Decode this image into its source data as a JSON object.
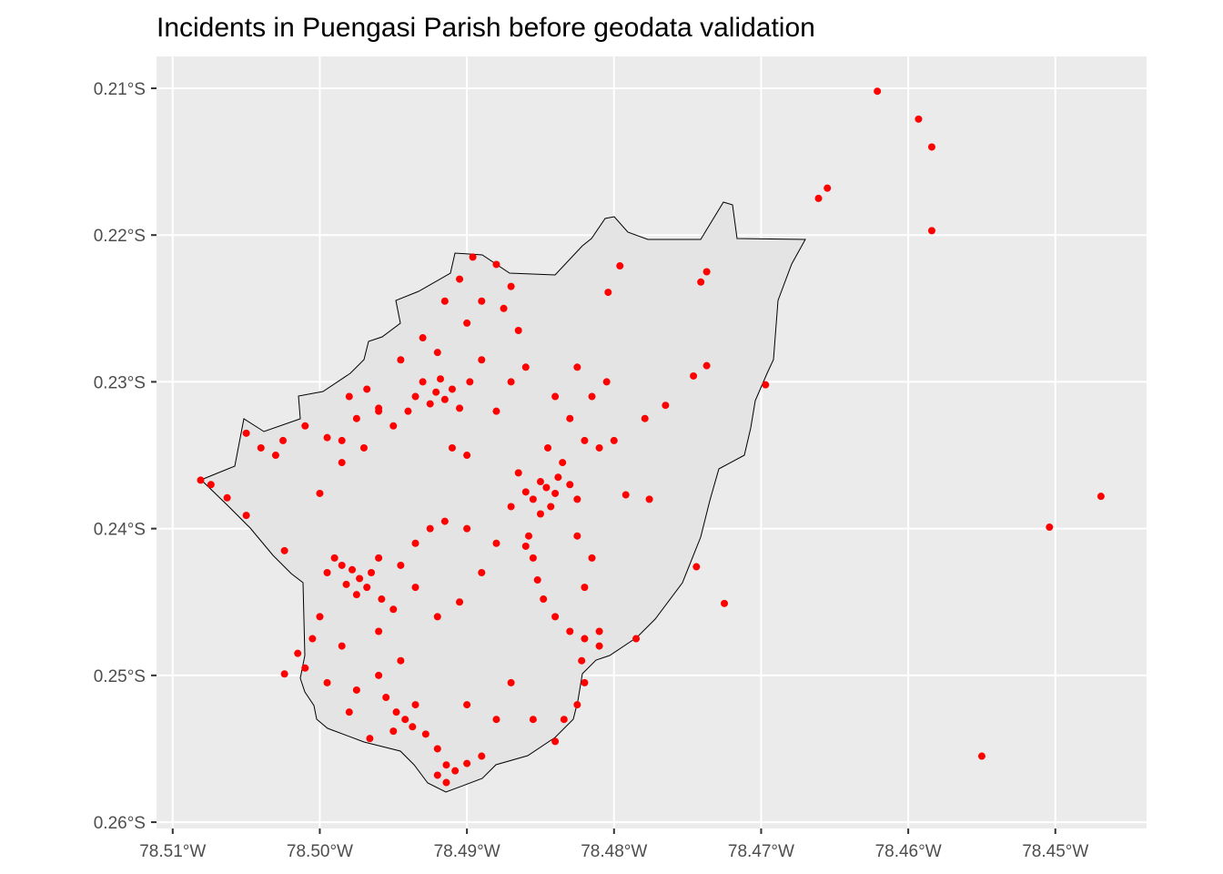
{
  "chart_data": {
    "type": "scatter",
    "title": "Incidents in Puengasi Parish before geodata validation",
    "color": "#ff0000",
    "grid": true,
    "xlim": [
      -78.5111,
      -78.4438
    ],
    "ylim": [
      -0.26043,
      -0.20783
    ],
    "xticks": [
      {
        "value": -78.51,
        "label": "78.51°W"
      },
      {
        "value": -78.5,
        "label": "78.50°W"
      },
      {
        "value": -78.49,
        "label": "78.49°W"
      },
      {
        "value": -78.48,
        "label": "78.48°W"
      },
      {
        "value": -78.47,
        "label": "78.47°W"
      },
      {
        "value": -78.46,
        "label": "78.46°W"
      },
      {
        "value": -78.45,
        "label": "78.45°W"
      }
    ],
    "yticks": [
      {
        "value": -0.21,
        "label": "0.21°S"
      },
      {
        "value": -0.22,
        "label": "0.22°S"
      },
      {
        "value": -0.23,
        "label": "0.23°S"
      },
      {
        "value": -0.24,
        "label": "0.24°S"
      },
      {
        "value": -0.25,
        "label": "0.25°S"
      },
      {
        "value": -0.26,
        "label": "0.26°S"
      }
    ],
    "x": [
      -78.4621,
      -78.4593,
      -78.4584,
      -78.4584,
      -78.4655,
      -78.4661,
      -78.4469,
      -78.4504,
      -78.455,
      -78.4697,
      -78.4725,
      -78.4744,
      -78.4737,
      -78.4741,
      -78.4737,
      -78.4746,
      -78.4765,
      -78.4779,
      -78.4776,
      -78.4792,
      -78.4785,
      -78.4796,
      -78.4804,
      -78.5081,
      -78.5074,
      -78.5063,
      -78.505,
      -78.5024,
      -78.5,
      -78.5024,
      -78.4966,
      -78.4914,
      -78.4921,
      -78.493,
      -78.4915,
      -78.4925,
      -78.491,
      -78.4935,
      -78.4918,
      -78.4905,
      -78.494,
      -78.4898,
      -78.495,
      -78.496,
      -78.4975,
      -78.4985,
      -78.4968,
      -78.4945,
      -78.493,
      -78.491,
      -78.49,
      -78.488,
      -78.487,
      -78.4896,
      -78.4905,
      -78.489,
      -78.488,
      -78.4915,
      -78.49,
      -78.4875,
      -78.4865,
      -78.492,
      -78.489,
      -78.487,
      -78.486,
      -78.4846,
      -78.485,
      -78.484,
      -78.4855,
      -78.4838,
      -78.486,
      -78.4843,
      -78.483,
      -78.4865,
      -78.485,
      -78.4835,
      -78.4825,
      -78.487,
      -78.4845,
      -78.482,
      -78.481,
      -78.48,
      -78.483,
      -78.4815,
      -78.484,
      -78.4825,
      -78.4805,
      -78.4858,
      -78.4855,
      -78.4852,
      -78.4848,
      -78.486,
      -78.484,
      -78.483,
      -78.482,
      -78.481,
      -78.482,
      -78.4815,
      -78.4825,
      -78.4973,
      -78.4978,
      -78.4968,
      -78.4982,
      -78.4965,
      -78.4975,
      -78.4985,
      -78.496,
      -78.499,
      -78.4958,
      -78.4995,
      -78.4945,
      -78.4935,
      -78.4925,
      -78.4915,
      -78.4935,
      -78.495,
      -78.5,
      -78.5005,
      -78.4985,
      -78.496,
      -78.492,
      -78.4905,
      -78.489,
      -78.488,
      -78.49,
      -78.4942,
      -78.4948,
      -78.4937,
      -78.495,
      -78.4935,
      -78.4928,
      -78.4955,
      -78.492,
      -78.4914,
      -78.4908,
      -78.492,
      -78.49,
      -78.489,
      -78.496,
      -78.4945,
      -78.4975,
      -78.4995,
      -78.501,
      -78.5015,
      -78.498,
      -78.49,
      -78.488,
      -78.487,
      -78.4855,
      -78.4834,
      -78.4825,
      -78.482,
      -78.4822,
      -78.481,
      -78.484,
      -78.4995,
      -78.501,
      -78.5025,
      -78.504,
      -78.505,
      -78.4985,
      -78.503,
      -78.497,
      -78.496,
      -78.498
    ],
    "y": [
      -0.2102,
      -0.2121,
      -0.214,
      -0.2197,
      -0.2168,
      -0.2175,
      -0.2378,
      -0.2399,
      -0.2555,
      -0.2302,
      -0.2451,
      -0.2426,
      -0.2225,
      -0.2232,
      -0.2289,
      -0.2296,
      -0.2316,
      -0.2325,
      -0.238,
      -0.2377,
      -0.2475,
      -0.2221,
      -0.2239,
      -0.2367,
      -0.237,
      -0.2379,
      -0.2391,
      -0.2415,
      -0.2376,
      -0.2499,
      -0.2543,
      -0.2573,
      -0.2307,
      -0.23,
      -0.2312,
      -0.2315,
      -0.2305,
      -0.231,
      -0.2298,
      -0.2318,
      -0.232,
      -0.23,
      -0.233,
      -0.2318,
      -0.2325,
      -0.234,
      -0.2305,
      -0.2285,
      -0.227,
      -0.2345,
      -0.235,
      -0.232,
      -0.23,
      -0.2215,
      -0.223,
      -0.2245,
      -0.222,
      -0.2245,
      -0.226,
      -0.225,
      -0.2265,
      -0.228,
      -0.2285,
      -0.2235,
      -0.229,
      -0.2372,
      -0.2368,
      -0.2376,
      -0.238,
      -0.2365,
      -0.2375,
      -0.2385,
      -0.237,
      -0.2362,
      -0.239,
      -0.2355,
      -0.238,
      -0.2385,
      -0.2345,
      -0.234,
      -0.2345,
      -0.234,
      -0.2325,
      -0.231,
      -0.231,
      -0.229,
      -0.23,
      -0.2405,
      -0.242,
      -0.2435,
      -0.2448,
      -0.2412,
      -0.246,
      -0.247,
      -0.2475,
      -0.247,
      -0.244,
      -0.242,
      -0.2405,
      -0.2434,
      -0.2428,
      -0.244,
      -0.2438,
      -0.243,
      -0.2445,
      -0.2425,
      -0.242,
      -0.242,
      -0.2448,
      -0.243,
      -0.2425,
      -0.241,
      -0.24,
      -0.2395,
      -0.244,
      -0.2455,
      -0.246,
      -0.2475,
      -0.248,
      -0.247,
      -0.246,
      -0.245,
      -0.243,
      -0.241,
      -0.24,
      -0.253,
      -0.2525,
      -0.2535,
      -0.2538,
      -0.252,
      -0.254,
      -0.2515,
      -0.255,
      -0.2561,
      -0.2565,
      -0.2568,
      -0.256,
      -0.2555,
      -0.25,
      -0.249,
      -0.251,
      -0.2505,
      -0.2495,
      -0.2485,
      -0.2525,
      -0.252,
      -0.253,
      -0.2505,
      -0.253,
      -0.253,
      -0.252,
      -0.2505,
      -0.249,
      -0.248,
      -0.2545,
      -0.2338,
      -0.233,
      -0.234,
      -0.2345,
      -0.2335,
      -0.2355,
      -0.235,
      -0.2345,
      -0.232,
      -0.231
    ]
  }
}
